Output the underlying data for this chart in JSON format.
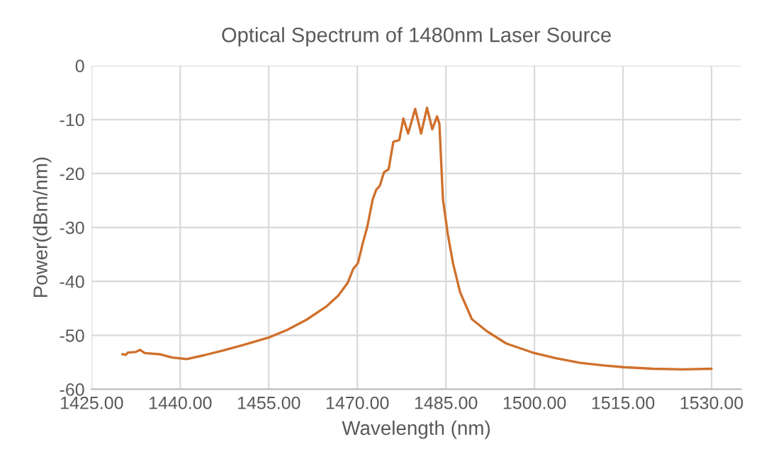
{
  "chart_data": {
    "type": "line",
    "title": "Optical Spectrum of 1480nm Laser Source",
    "xlabel": "Wavelength (nm)",
    "ylabel": "Power(dBm/nm)",
    "series": [
      {
        "color": "#d0702c",
        "x": [
          1430.2,
          1430.8,
          1431.1,
          1432.4,
          1433.2,
          1434.0,
          1436.5,
          1438.6,
          1441.1,
          1444.0,
          1447.3,
          1450.6,
          1455.0,
          1458.1,
          1461.4,
          1464.7,
          1466.8,
          1468.4,
          1469.3,
          1470.1,
          1470.9,
          1471.7,
          1472.6,
          1473.2,
          1473.8,
          1474.5,
          1475.3,
          1476.1,
          1477.1,
          1477.8,
          1478.6,
          1479.8,
          1480.8,
          1481.8,
          1482.7,
          1483.5,
          1483.9,
          1484.5,
          1485.3,
          1486.2,
          1487.4,
          1489.4,
          1491.9,
          1495.2,
          1500.0,
          1503.5,
          1507.7,
          1511.8,
          1515.1,
          1520.1,
          1525.0,
          1530.0
        ],
        "values": [
          -53.5,
          -53.6,
          -53.2,
          -53.1,
          -52.7,
          -53.3,
          -53.5,
          -54.1,
          -54.4,
          -53.7,
          -52.8,
          -51.8,
          -50.4,
          -49.0,
          -47.1,
          -44.7,
          -42.6,
          -40.2,
          -37.7,
          -36.6,
          -33.0,
          -29.8,
          -24.8,
          -23.0,
          -22.3,
          -19.8,
          -19.2,
          -14.1,
          -13.8,
          -9.8,
          -12.6,
          -8.0,
          -12.6,
          -7.8,
          -11.8,
          -9.4,
          -10.8,
          -24.8,
          -31.1,
          -36.6,
          -42.0,
          -47.0,
          -49.2,
          -51.5,
          -53.3,
          -54.2,
          -55.1,
          -55.6,
          -55.9,
          -56.2,
          -56.3,
          -56.2
        ]
      }
    ],
    "xlim": [
      1425,
      1535
    ],
    "xticks": [
      {
        "value": 1425,
        "label": "1425.00"
      },
      {
        "value": 1440,
        "label": "1440.00"
      },
      {
        "value": 1455,
        "label": "1455.00"
      },
      {
        "value": 1470,
        "label": "1470.00"
      },
      {
        "value": 1485,
        "label": "1485.00"
      },
      {
        "value": 1500,
        "label": "1500.00"
      },
      {
        "value": 1515,
        "label": "1515.00"
      },
      {
        "value": 1530,
        "label": "1530.00"
      }
    ],
    "ylim": [
      -60,
      0
    ],
    "yticks": [
      -60,
      -50,
      -40,
      -30,
      -20,
      -10,
      0
    ],
    "grid": true,
    "marker": "none",
    "line_style": "solid"
  }
}
